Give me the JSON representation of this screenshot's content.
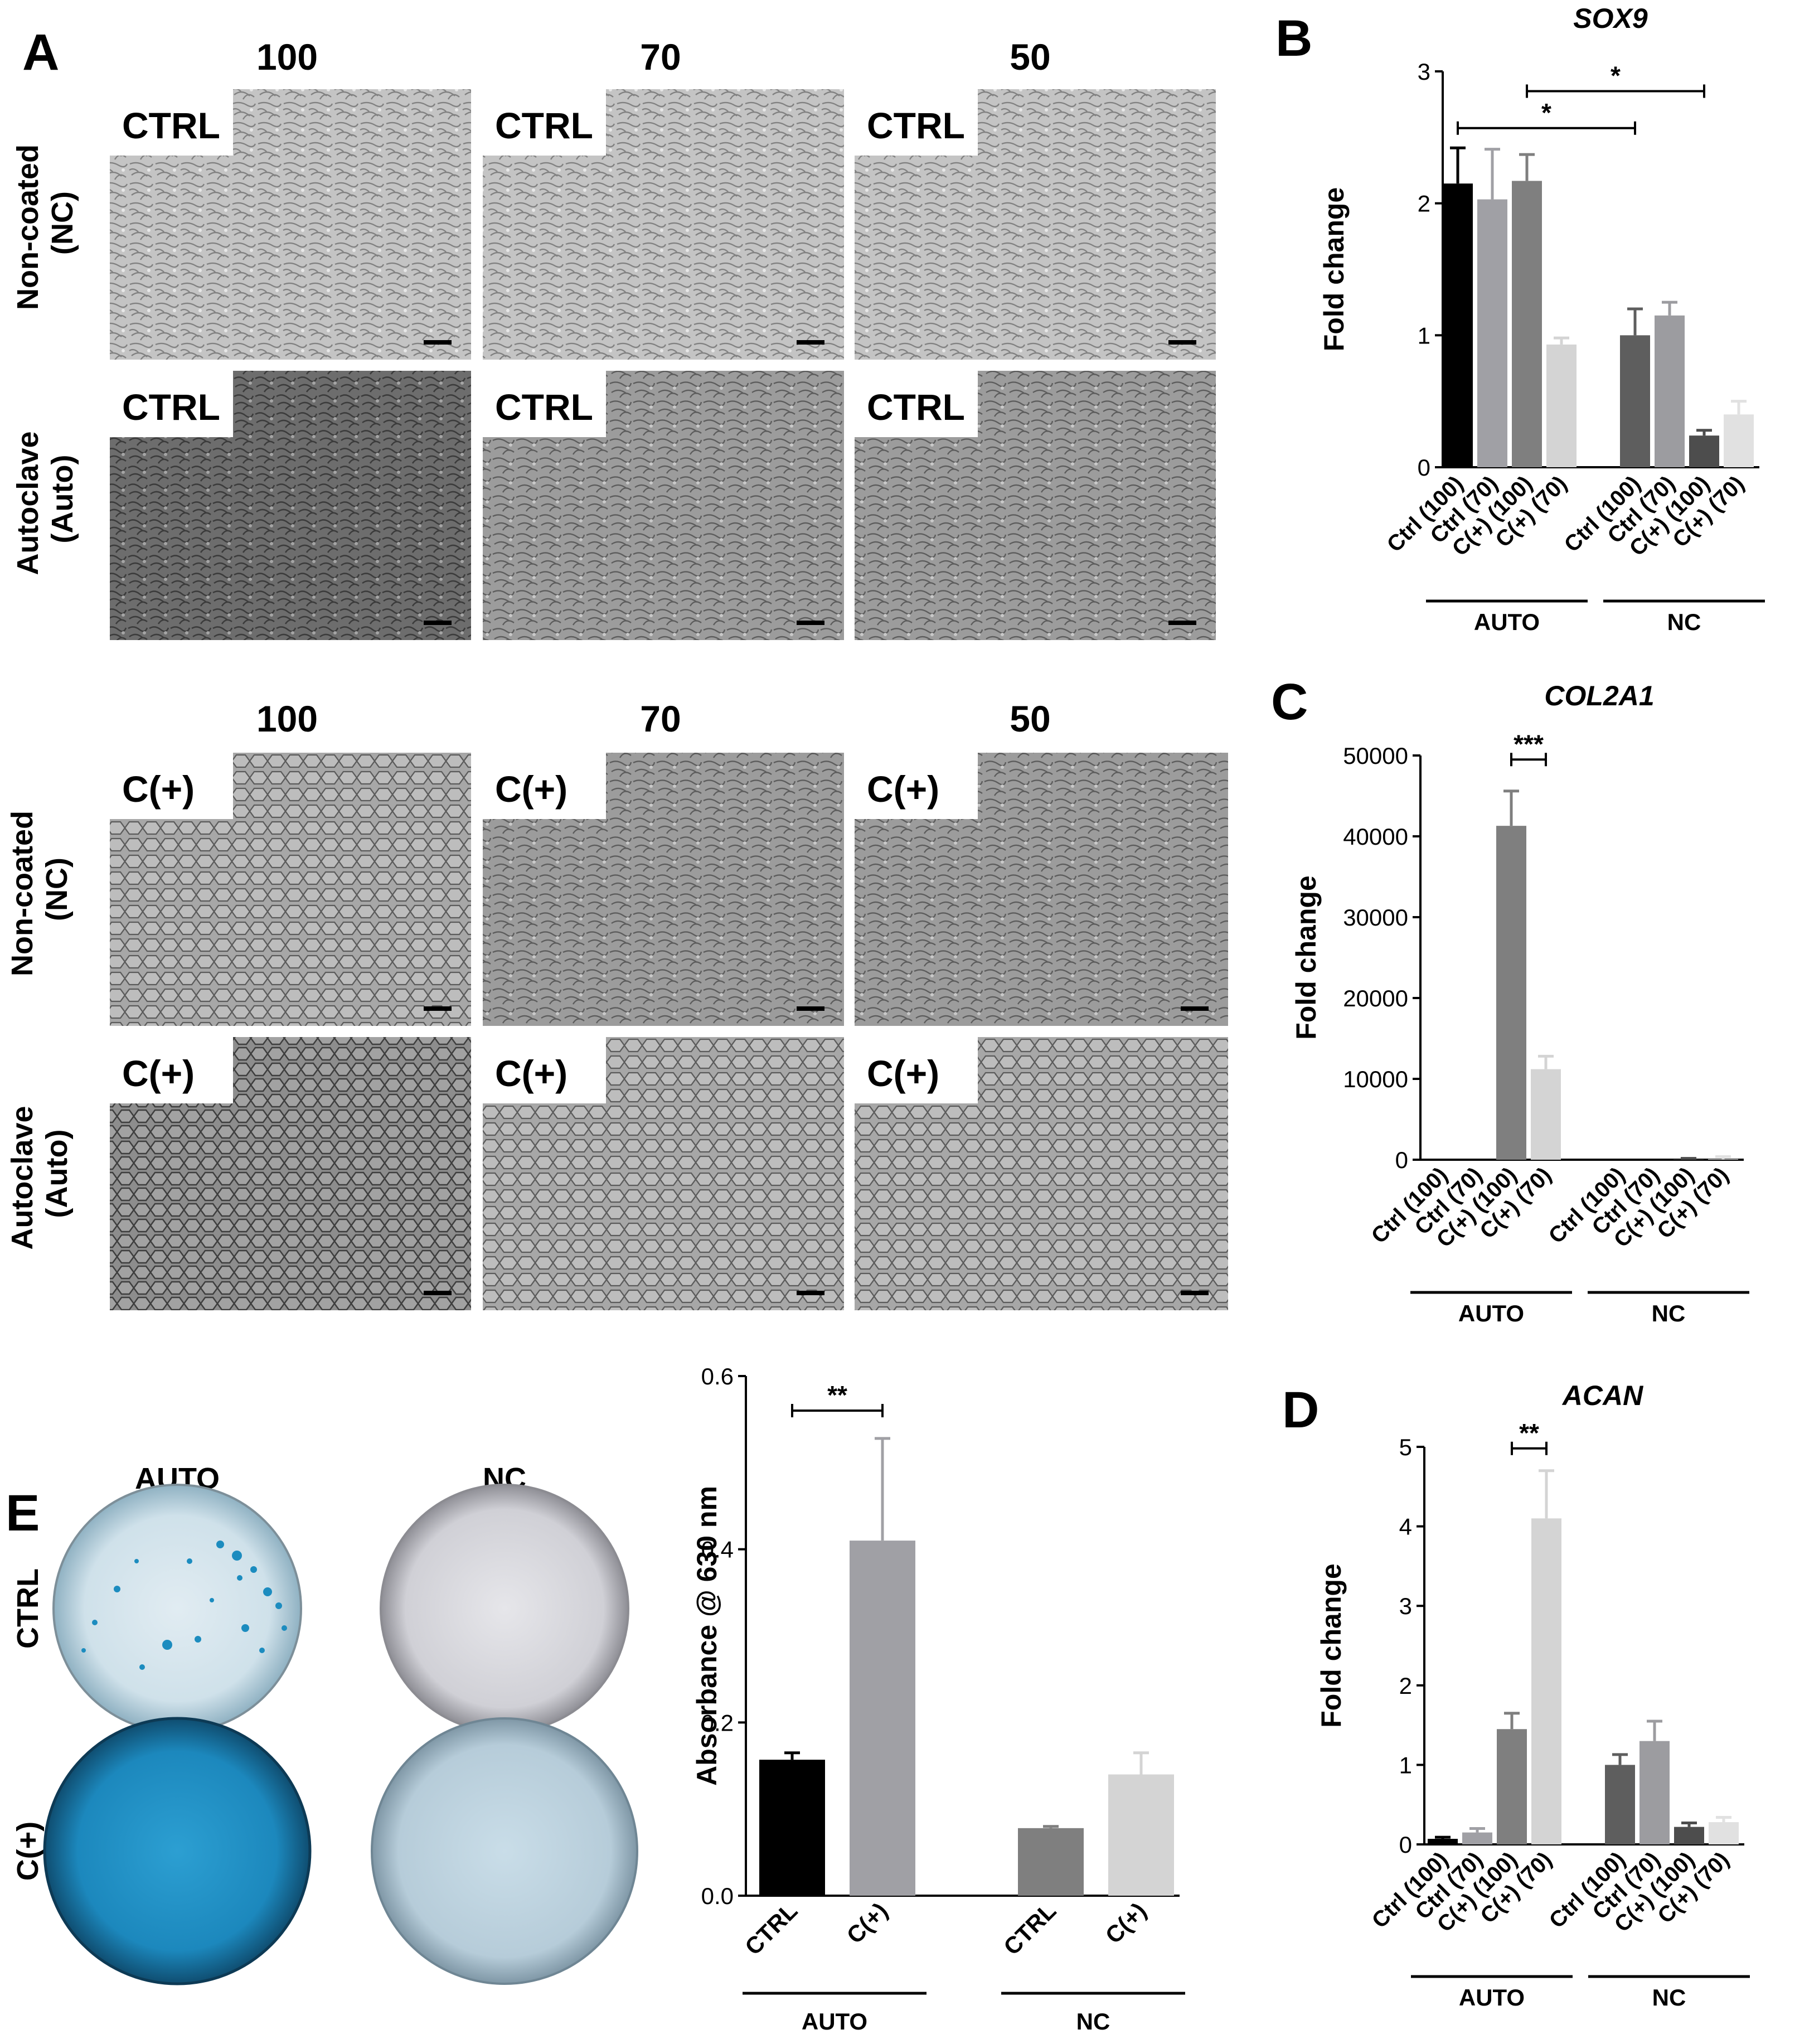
{
  "panel_letters": {
    "A": "A",
    "B": "B",
    "C": "C",
    "D": "D",
    "E": "E"
  },
  "panel_a": {
    "percent_headers": [
      "100",
      "70",
      "50"
    ],
    "row_labels": {
      "nc": [
        "Non-coated",
        "(NC)"
      ],
      "auto": [
        "Autoclave",
        "(Auto)"
      ]
    },
    "tile_labels": {
      "ctrl": "CTRL",
      "cplus": "C(+)"
    }
  },
  "colors": {
    "ctrl_100": "#000000",
    "ctrl_70": "#a0a0a5",
    "cplus_100": "#7f7f7f",
    "cplus_70": "#d4d4d4",
    "nc_ctrl_100": "#5e5e5e",
    "nc_ctrl_70": "#9c9ca0",
    "nc_cplus_100": "#4d4d4d",
    "nc_cplus_70": "#e1e1e1",
    "alcian_blue": "#1f8fc0"
  },
  "panel_e": {
    "plate_col_labels": [
      "AUTO",
      "NC"
    ],
    "plate_row_labels": [
      "CTRL",
      "C(+)"
    ]
  },
  "chart_data": [
    {
      "id": "B",
      "type": "bar",
      "title": "SOX9",
      "ylabel": "Fold change",
      "ylim": [
        0,
        3
      ],
      "yticks": [
        "0",
        "1",
        "2",
        "3"
      ],
      "categories": [
        "Ctrl (100)",
        "Ctrl (70)",
        "C(+) (100)",
        "C(+) (70)",
        "Ctrl (100)",
        "Ctrl (70)",
        "C(+) (100)",
        "C(+) (70)"
      ],
      "values": [
        2.15,
        2.03,
        2.17,
        0.93,
        1.0,
        1.15,
        0.24,
        0.4
      ],
      "errors": [
        0.27,
        0.38,
        0.2,
        0.05,
        0.2,
        0.1,
        0.04,
        0.1
      ],
      "groups": [
        "AUTO",
        "NC"
      ],
      "significance": [
        {
          "from": 0,
          "to": 4,
          "label": "*"
        },
        {
          "from": 2,
          "to": 6,
          "label": "*"
        }
      ]
    },
    {
      "id": "C",
      "type": "bar",
      "title": "COL2A1",
      "ylabel": "Fold change",
      "ylim": [
        0,
        50000
      ],
      "yticks": [
        "0",
        "10000",
        "20000",
        "30000",
        "40000",
        "50000"
      ],
      "categories": [
        "Ctrl (100)",
        "Ctrl (70)",
        "C(+) (100)",
        "C(+) (70)",
        "Ctrl (100)",
        "Ctrl (70)",
        "C(+) (100)",
        "C(+) (70)"
      ],
      "values": [
        0,
        0,
        41300,
        11200,
        0,
        0,
        60,
        80
      ],
      "errors": [
        0,
        0,
        4300,
        1600,
        0,
        0,
        100,
        300
      ],
      "groups": [
        "AUTO",
        "NC"
      ],
      "significance": [
        {
          "from": 2,
          "to": 3,
          "label": "***"
        }
      ]
    },
    {
      "id": "D",
      "type": "bar",
      "title": "ACAN",
      "ylabel": "Fold change",
      "ylim": [
        0,
        5
      ],
      "yticks": [
        "0",
        "1",
        "2",
        "3",
        "4",
        "5"
      ],
      "categories": [
        "Ctrl (100)",
        "Ctrl (70)",
        "C(+) (100)",
        "C(+) (70)",
        "Ctrl (100)",
        "Ctrl (70)",
        "C(+) (100)",
        "C(+) (70)"
      ],
      "values": [
        0.07,
        0.15,
        1.45,
        4.1,
        1.0,
        1.3,
        0.22,
        0.28
      ],
      "errors": [
        0.02,
        0.05,
        0.2,
        0.6,
        0.13,
        0.25,
        0.05,
        0.06
      ],
      "groups": [
        "AUTO",
        "NC"
      ],
      "significance": [
        {
          "from": 2,
          "to": 3,
          "label": "**"
        }
      ]
    },
    {
      "id": "E",
      "type": "bar",
      "title": "",
      "ylabel": "Absorbance @ 630 nm",
      "ylim": [
        0,
        0.6
      ],
      "yticks": [
        "0.0",
        "0.2",
        "0.4",
        "0.6"
      ],
      "categories": [
        "CTRL",
        "C(+)",
        "CTRL",
        "C(+)"
      ],
      "values": [
        0.157,
        0.41,
        0.078,
        0.14
      ],
      "errors": [
        0.008,
        0.118,
        0.002,
        0.025
      ],
      "groups": [
        "AUTO",
        "NC"
      ],
      "significance": [
        {
          "from": 0,
          "to": 1,
          "label": "**"
        }
      ]
    }
  ]
}
